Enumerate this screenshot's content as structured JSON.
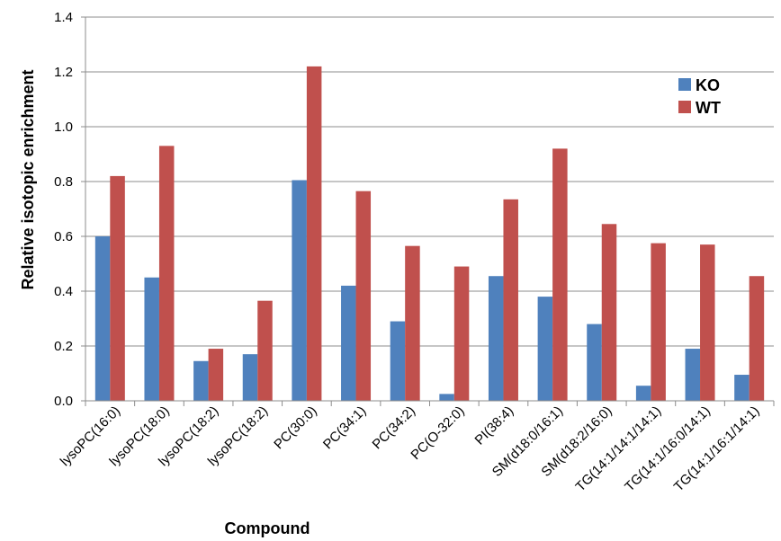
{
  "chart_data": {
    "type": "bar",
    "title": "",
    "xlabel": "Compound",
    "ylabel": "Relative isotopic enrichment",
    "ylim": [
      0,
      1.4
    ],
    "yticks": [
      "0.0",
      "0.2",
      "0.4",
      "0.6",
      "0.8",
      "1.0",
      "1.2",
      "1.4"
    ],
    "grid": true,
    "legend_position": "top-right",
    "categories": [
      "lysoPC(16:0)",
      "lysoPC(18:0)",
      "lysoPC(18:2)",
      "lysoPC(18:2)",
      "PC(30:0)",
      "PC(34:1)",
      "PC(34:2)",
      "PC(O-32:0)",
      "PI(38:4)",
      "SM(d18:0/16:1)",
      "SM(d18:2/16:0)",
      "TG(14:1/14:1/14:1)",
      "TG(14:1/16:0/14:1)",
      "TG(14:1/16:1/14:1)"
    ],
    "series": [
      {
        "name": "KO",
        "color": "#4F81BD",
        "values": [
          0.6,
          0.45,
          0.145,
          0.17,
          0.805,
          0.42,
          0.29,
          0.025,
          0.455,
          0.38,
          0.28,
          0.055,
          0.19,
          0.095
        ]
      },
      {
        "name": "WT",
        "color": "#C0504D",
        "values": [
          0.82,
          0.93,
          0.19,
          0.365,
          1.22,
          0.765,
          0.565,
          0.49,
          0.735,
          0.92,
          0.645,
          0.575,
          0.57,
          0.455
        ]
      }
    ]
  }
}
